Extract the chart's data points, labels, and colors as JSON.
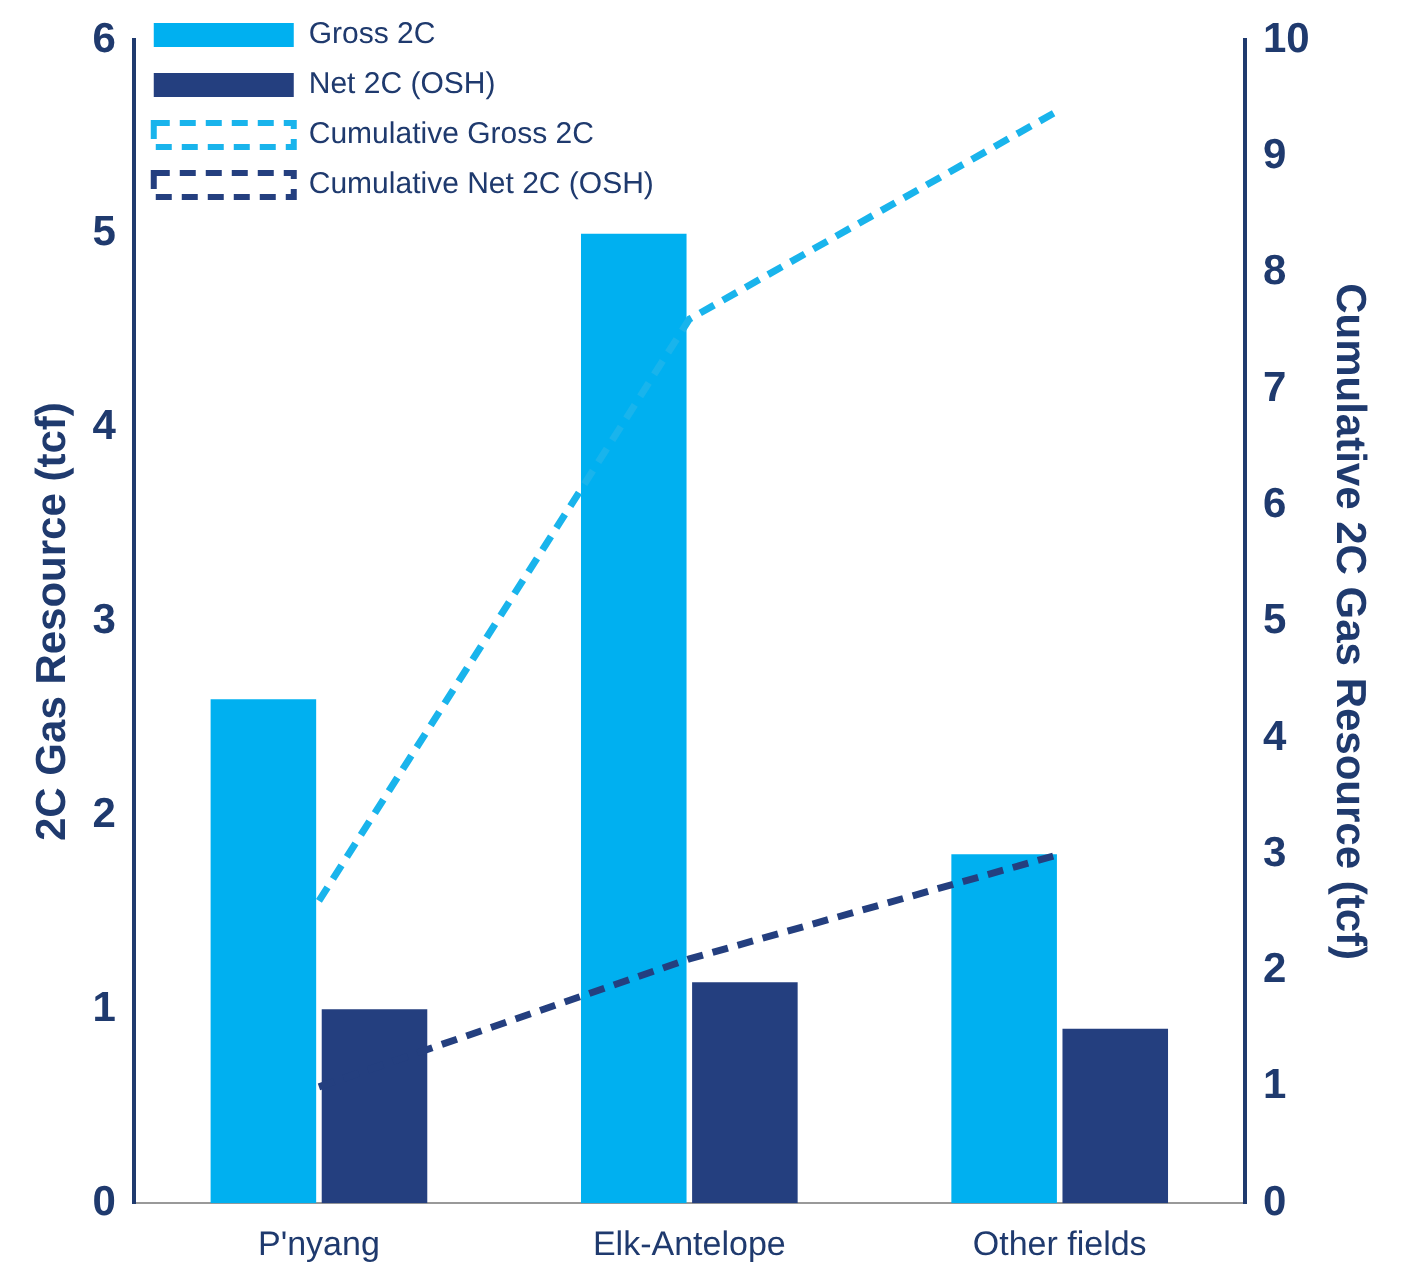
{
  "chart_data": {
    "type": "bar",
    "categories": [
      "P'nyang",
      "Elk-Antelope",
      "Other fields"
    ],
    "ylabel": "2C Gas Resource (tcf)",
    "y2label": "Cumulative 2C Gas Resource (tcf)",
    "ylim": [
      0,
      6
    ],
    "yticks": [
      0,
      1,
      2,
      3,
      4,
      5,
      6
    ],
    "y2lim": [
      0,
      10
    ],
    "y2ticks": [
      0,
      1,
      2,
      3,
      4,
      5,
      6,
      7,
      8,
      9,
      10
    ],
    "grid": false,
    "legend": "top left",
    "line_style": "dashed",
    "series": [
      {
        "name": "Gross 2C",
        "color": "#00b0f0",
        "values": [
          2.6,
          5.0,
          1.8
        ]
      },
      {
        "name": "Net 2C (OSH)",
        "color": "#243f7f",
        "values": [
          1.0,
          1.14,
          0.9
        ]
      },
      {
        "name": "Cumulative Gross 2C",
        "type": "line",
        "axis": "y2",
        "color": "#19b4ec",
        "values": [
          2.6,
          7.6,
          9.4
        ]
      },
      {
        "name": "Cumulative Net 2C (OSH)",
        "type": "line",
        "axis": "y2",
        "color": "#243f7f",
        "values": [
          1.0,
          2.1,
          3.0
        ]
      }
    ]
  }
}
